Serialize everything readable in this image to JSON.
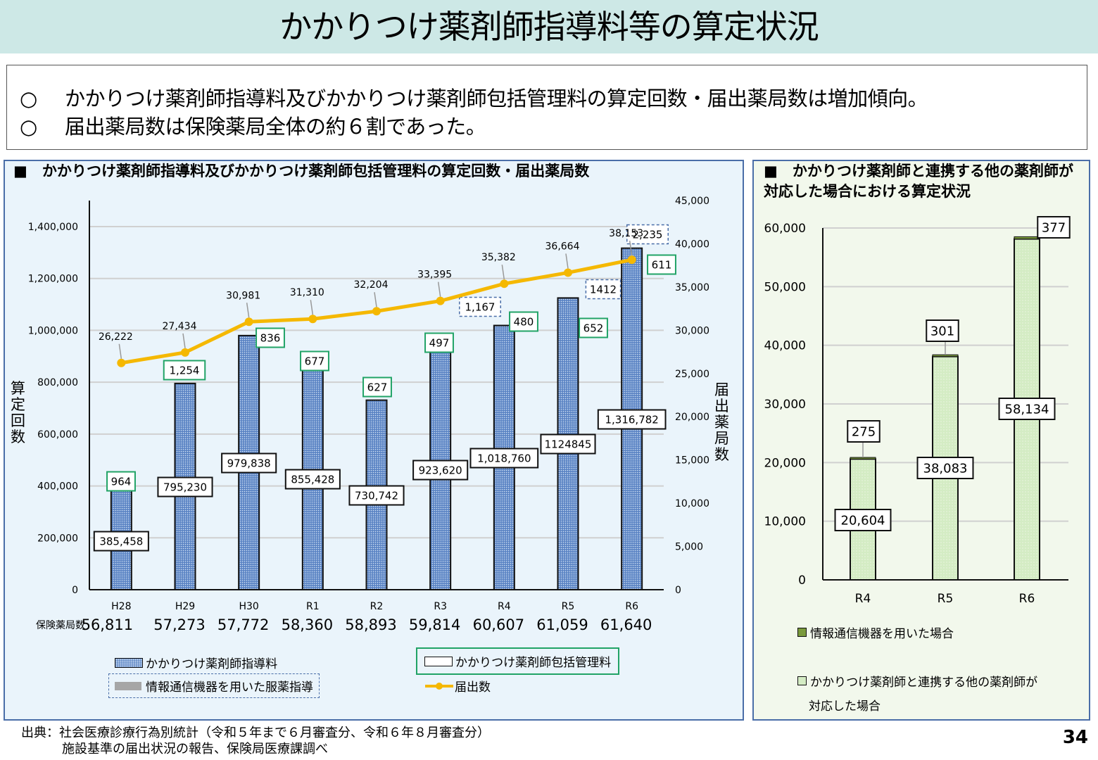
{
  "page": {
    "title": "かかりつけ薬剤師指導料等の算定状況",
    "summary": [
      {
        "mark": "○",
        "text": "かかりつけ薬剤師指導料及びかかりつけ薬剤師包括管理料の算定回数・届出薬局数は増加傾向。"
      },
      {
        "mark": "○",
        "text": "届出薬局数は保険薬局全体の約６割であった。"
      }
    ],
    "source_line1": "出典：社会医療診療行為別統計（令和５年まで６月審査分、令和６年８月審査分）",
    "source_line2": "施設基準の届出状況の報告、保険局医療課調べ",
    "page_number": "34"
  },
  "colors": {
    "bar_blue": "#5b84c4",
    "bar_green": "#d4ecc4",
    "top_green": "#7a9a3c",
    "line_yellow": "#f5b800",
    "label_green_border": "#21a366",
    "label_dashed_border": "#4a6ea8"
  },
  "chart_data": [
    {
      "type": "bar",
      "title": "■　かかりつけ薬剤師指導料及びかかりつけ薬剤師包括管理料の算定回数・届出薬局数",
      "categories": [
        "H28",
        "H29",
        "H30",
        "R1",
        "R2",
        "R3",
        "R4",
        "R5",
        "R6"
      ],
      "ylabel": "算定回数",
      "y2label": "届出薬局数",
      "ylim": [
        0,
        1400000
      ],
      "yticks": [
        "0",
        "200,000",
        "400,000",
        "600,000",
        "800,000",
        "1,000,000",
        "1,200,000",
        "1,400,000"
      ],
      "y2lim": [
        0,
        45000
      ],
      "y2ticks": [
        "0",
        "5,000",
        "10,000",
        "15,000",
        "20,000",
        "25,000",
        "30,000",
        "35,000",
        "40,000",
        "45,000"
      ],
      "grid": true,
      "series": [
        {
          "name": "かかりつけ薬剤師指導料",
          "axis": "left",
          "kind": "bar",
          "values": [
            385458,
            795230,
            979838,
            855428,
            730742,
            923620,
            1018760,
            1124845,
            1316782
          ],
          "labels": [
            "385,458",
            "795,230",
            "979,838",
            "855,428",
            "730,742",
            "923,620",
            "1,018,760",
            "1124845",
            "1,316,782"
          ]
        },
        {
          "name": "かかりつけ薬剤師包括管理料",
          "axis": "left",
          "kind": "bar-stack",
          "values": [
            964,
            1254,
            836,
            677,
            627,
            497,
            480,
            652,
            611
          ],
          "labels": [
            "964",
            "1,254",
            "836",
            "677",
            "627",
            "497",
            "480",
            "652",
            "611"
          ]
        },
        {
          "name": "情報通信機器を用いた服薬指導",
          "axis": "left",
          "kind": "bar-stack",
          "values": [
            null,
            null,
            null,
            null,
            null,
            null,
            1167,
            1412,
            2235
          ],
          "labels": [
            "",
            "",
            "",
            "",
            "",
            "",
            "1,167",
            "1412",
            "2,235"
          ]
        },
        {
          "name": "届出数",
          "axis": "right",
          "kind": "line",
          "values": [
            26222,
            27434,
            30981,
            31310,
            32204,
            33395,
            35382,
            36664,
            38153
          ],
          "labels": [
            "26,222",
            "27,434",
            "30,981",
            "31,310",
            "32,204",
            "33,395",
            "35,382",
            "36,664",
            "38,153"
          ]
        }
      ],
      "insurance_pharmacies": {
        "label": "保険薬局数",
        "values": [
          "56,811",
          "57,273",
          "57,772",
          "58,360",
          "58,893",
          "59,814",
          "60,607",
          "61,059",
          "61,640"
        ]
      },
      "legend": [
        {
          "name": "かかりつけ薬剤師指導料"
        },
        {
          "name": "かかりつけ薬剤師包括管理料"
        },
        {
          "name": "情報通信機器を用いた服薬指導"
        },
        {
          "name": "届出数"
        }
      ],
      "legend_position": "bottom"
    },
    {
      "type": "bar",
      "title": "■　かかりつけ薬剤師と連携する他の薬剤師が対応した場合における算定状況",
      "categories": [
        "R4",
        "R5",
        "R6"
      ],
      "ylim": [
        0,
        60000
      ],
      "yticks": [
        "0",
        "10,000",
        "20,000",
        "30,000",
        "40,000",
        "50,000",
        "60,000"
      ],
      "grid": true,
      "series": [
        {
          "name": "かかりつけ薬剤師と連携する他の薬剤師が対応した場合",
          "values": [
            20604,
            38083,
            58134
          ],
          "labels": [
            "20,604",
            "38,083",
            "58,134"
          ]
        },
        {
          "name": "情報通信機器を用いた場合",
          "values": [
            275,
            301,
            377
          ],
          "labels": [
            "275",
            "301",
            "377"
          ]
        }
      ],
      "legend": [
        {
          "name": "情報通信機器を用いた場合"
        },
        {
          "name": "かかりつけ薬剤師と連携する他の薬剤師が",
          "name_cont": "対応した場合"
        }
      ],
      "legend_position": "bottom"
    }
  ]
}
